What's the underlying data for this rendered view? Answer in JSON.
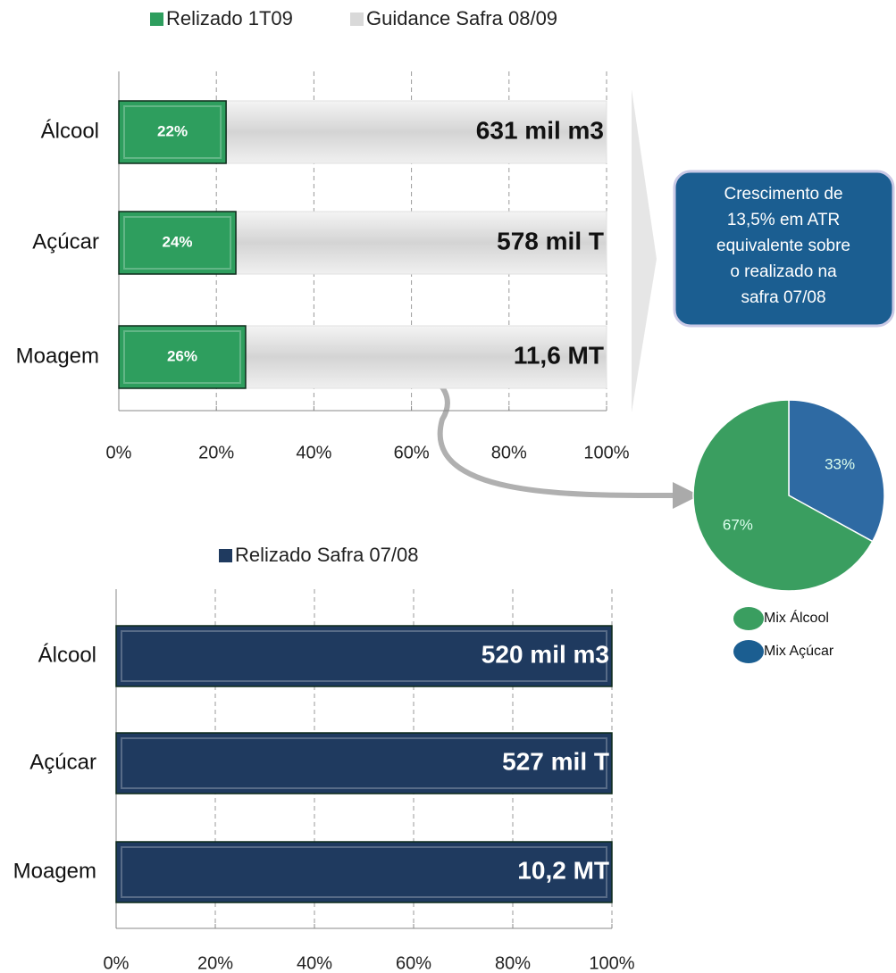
{
  "chart_data": [
    {
      "type": "bar",
      "categories": [
        "Álcool",
        "Açúcar",
        "Moagem"
      ],
      "series": [
        {
          "name": "Relizado 1T09",
          "color": "#2e9e5e",
          "values": [
            22,
            24,
            26
          ],
          "value_labels": [
            "22%",
            "24%",
            "26%"
          ]
        },
        {
          "name": "Guidance Safra 08/09",
          "color": "#d9d9d9",
          "values": [
            100,
            100,
            100
          ]
        }
      ],
      "annotations": [
        "631 mil m3",
        "578 mil T",
        "11,6 MT"
      ],
      "xlim": [
        0,
        100
      ],
      "xticks": [
        {
          "value": 0,
          "label": "0%"
        },
        {
          "value": 20,
          "label": "20%"
        },
        {
          "value": 40,
          "label": "40%"
        },
        {
          "value": 60,
          "label": "60%"
        },
        {
          "value": 80,
          "label": "80%"
        },
        {
          "value": 100,
          "label": "100%"
        }
      ],
      "grid": true
    },
    {
      "type": "bar",
      "categories": [
        "Álcool",
        "Açúcar",
        "Moagem"
      ],
      "series": [
        {
          "name": "Relizado Safra 07/08",
          "color": "#1f3a5f",
          "values": [
            100,
            100,
            100
          ]
        }
      ],
      "annotations": [
        "520 mil m3",
        "527 mil T",
        "10,2 MT"
      ],
      "xlim": [
        0,
        100
      ],
      "xticks": [
        {
          "value": 0,
          "label": "0%"
        },
        {
          "value": 20,
          "label": "20%"
        },
        {
          "value": 40,
          "label": "40%"
        },
        {
          "value": 60,
          "label": "60%"
        },
        {
          "value": 80,
          "label": "80%"
        },
        {
          "value": 100,
          "label": "100%"
        }
      ],
      "grid": true
    },
    {
      "type": "pie",
      "categories": [
        "Mix Álcool",
        "Mix Açúcar"
      ],
      "values": [
        67,
        33
      ],
      "value_labels": [
        "67%",
        "33%"
      ],
      "colors": [
        "#3a9e60",
        "#2e6aa3"
      ]
    }
  ],
  "callout": [
    "Crescimento de",
    "13,5% em ATR",
    "equivalente sobre",
    "o realizado na",
    "safra 07/08"
  ]
}
